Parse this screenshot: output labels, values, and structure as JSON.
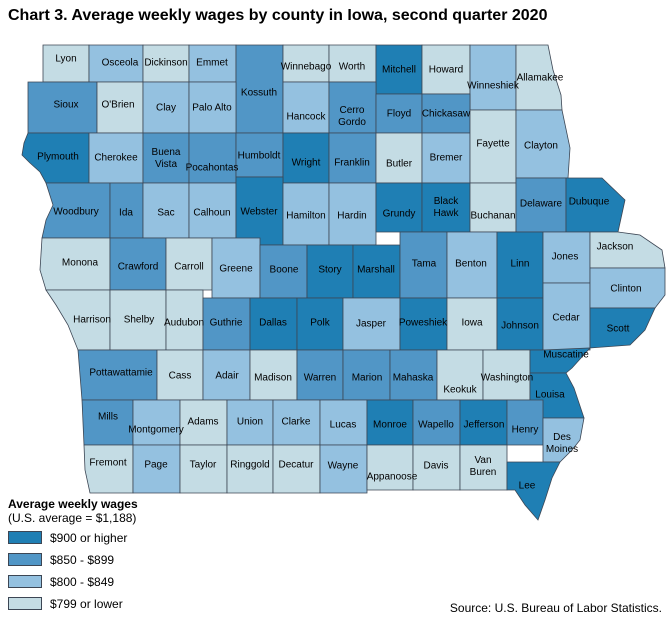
{
  "title": "Chart 3. Average weekly wages by county in Iowa, second quarter 2020",
  "legend": {
    "title": "Average weekly wages",
    "subtitle": "(U.S. average = $1,188)",
    "classes": [
      {
        "key": "a",
        "label": "$900 or higher",
        "color": "#1f7fb4"
      },
      {
        "key": "b",
        "label": "$850 - $899",
        "color": "#5196c6"
      },
      {
        "key": "c",
        "label": "$800 - $849",
        "color": "#94c1e0"
      },
      {
        "key": "d",
        "label": "$799 or lower",
        "color": "#c4dce4"
      }
    ]
  },
  "source": "Source: U.S. Bureau of Labor Statistics.",
  "counties": [
    {
      "name": "Lyon",
      "class": "d"
    },
    {
      "name": "Osceola",
      "class": "c"
    },
    {
      "name": "Dickinson",
      "class": "d"
    },
    {
      "name": "Emmet",
      "class": "c"
    },
    {
      "name": "Kossuth",
      "class": "b"
    },
    {
      "name": "Winnebago",
      "class": "d"
    },
    {
      "name": "Worth",
      "class": "d"
    },
    {
      "name": "Mitchell",
      "class": "a"
    },
    {
      "name": "Howard",
      "class": "d"
    },
    {
      "name": "Winneshiek",
      "class": "c"
    },
    {
      "name": "Allamakee",
      "class": "d"
    },
    {
      "name": "Sioux",
      "class": "b"
    },
    {
      "name": "O'Brien",
      "class": "d"
    },
    {
      "name": "Clay",
      "class": "c"
    },
    {
      "name": "Palo Alto",
      "class": "c"
    },
    {
      "name": "Hancock",
      "class": "c"
    },
    {
      "name": "Cerro Gordo",
      "class": "b"
    },
    {
      "name": "Floyd",
      "class": "b"
    },
    {
      "name": "Chickasaw",
      "class": "b"
    },
    {
      "name": "Plymouth",
      "class": "a"
    },
    {
      "name": "Cherokee",
      "class": "c"
    },
    {
      "name": "Buena Vista",
      "class": "b"
    },
    {
      "name": "Pocahontas",
      "class": "b"
    },
    {
      "name": "Humboldt",
      "class": "b"
    },
    {
      "name": "Wright",
      "class": "a"
    },
    {
      "name": "Franklin",
      "class": "b"
    },
    {
      "name": "Butler",
      "class": "d"
    },
    {
      "name": "Bremer",
      "class": "c"
    },
    {
      "name": "Fayette",
      "class": "d"
    },
    {
      "name": "Clayton",
      "class": "c"
    },
    {
      "name": "Woodbury",
      "class": "b"
    },
    {
      "name": "Ida",
      "class": "b"
    },
    {
      "name": "Sac",
      "class": "c"
    },
    {
      "name": "Calhoun",
      "class": "c"
    },
    {
      "name": "Webster",
      "class": "a"
    },
    {
      "name": "Hamilton",
      "class": "c"
    },
    {
      "name": "Hardin",
      "class": "c"
    },
    {
      "name": "Grundy",
      "class": "a"
    },
    {
      "name": "Black Hawk",
      "class": "a"
    },
    {
      "name": "Buchanan",
      "class": "d"
    },
    {
      "name": "Delaware",
      "class": "b"
    },
    {
      "name": "Dubuque",
      "class": "a"
    },
    {
      "name": "Monona",
      "class": "d"
    },
    {
      "name": "Crawford",
      "class": "b"
    },
    {
      "name": "Carroll",
      "class": "d"
    },
    {
      "name": "Greene",
      "class": "c"
    },
    {
      "name": "Boone",
      "class": "b"
    },
    {
      "name": "Story",
      "class": "a"
    },
    {
      "name": "Marshall",
      "class": "a"
    },
    {
      "name": "Tama",
      "class": "b"
    },
    {
      "name": "Benton",
      "class": "c"
    },
    {
      "name": "Linn",
      "class": "a"
    },
    {
      "name": "Jones",
      "class": "c"
    },
    {
      "name": "Jackson",
      "class": "d"
    },
    {
      "name": "Harrison",
      "class": "d"
    },
    {
      "name": "Shelby",
      "class": "d"
    },
    {
      "name": "Audubon",
      "class": "d"
    },
    {
      "name": "Guthrie",
      "class": "b"
    },
    {
      "name": "Dallas",
      "class": "a"
    },
    {
      "name": "Polk",
      "class": "a"
    },
    {
      "name": "Jasper",
      "class": "c"
    },
    {
      "name": "Poweshiek",
      "class": "a"
    },
    {
      "name": "Iowa",
      "class": "d"
    },
    {
      "name": "Johnson",
      "class": "a"
    },
    {
      "name": "Cedar",
      "class": "c"
    },
    {
      "name": "Clinton",
      "class": "c"
    },
    {
      "name": "Scott",
      "class": "a"
    },
    {
      "name": "Pottawattamie",
      "class": "b"
    },
    {
      "name": "Cass",
      "class": "d"
    },
    {
      "name": "Adair",
      "class": "c"
    },
    {
      "name": "Madison",
      "class": "d"
    },
    {
      "name": "Warren",
      "class": "b"
    },
    {
      "name": "Marion",
      "class": "b"
    },
    {
      "name": "Mahaska",
      "class": "b"
    },
    {
      "name": "Keokuk",
      "class": "d"
    },
    {
      "name": "Washington",
      "class": "d"
    },
    {
      "name": "Muscatine",
      "class": "a"
    },
    {
      "name": "Louisa",
      "class": "a"
    },
    {
      "name": "Mills",
      "class": "b"
    },
    {
      "name": "Montgomery",
      "class": "c"
    },
    {
      "name": "Adams",
      "class": "d"
    },
    {
      "name": "Union",
      "class": "c"
    },
    {
      "name": "Clarke",
      "class": "c"
    },
    {
      "name": "Lucas",
      "class": "c"
    },
    {
      "name": "Monroe",
      "class": "a"
    },
    {
      "name": "Wapello",
      "class": "b"
    },
    {
      "name": "Jefferson",
      "class": "a"
    },
    {
      "name": "Henry",
      "class": "b"
    },
    {
      "name": "Des Moines",
      "class": "c"
    },
    {
      "name": "Fremont",
      "class": "d"
    },
    {
      "name": "Page",
      "class": "c"
    },
    {
      "name": "Taylor",
      "class": "d"
    },
    {
      "name": "Ringgold",
      "class": "d"
    },
    {
      "name": "Decatur",
      "class": "d"
    },
    {
      "name": "Wayne",
      "class": "c"
    },
    {
      "name": "Appanoose",
      "class": "d"
    },
    {
      "name": "Davis",
      "class": "d"
    },
    {
      "name": "Van Buren",
      "class": "d"
    },
    {
      "name": "Lee",
      "class": "a"
    }
  ]
}
